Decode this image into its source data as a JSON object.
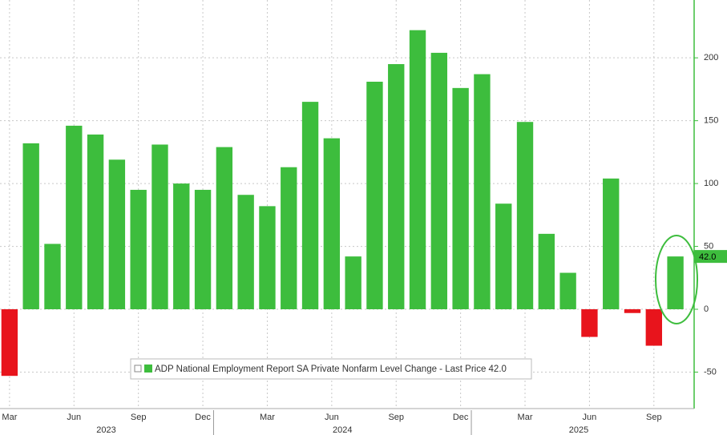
{
  "chart_data": {
    "type": "bar",
    "categories": [
      "Mar",
      null,
      null,
      "Jun",
      null,
      null,
      "Sep",
      null,
      null,
      "Dec",
      null,
      null,
      "Mar",
      null,
      null,
      "Jun",
      null,
      null,
      "Sep",
      null,
      null,
      "Dec",
      null,
      null,
      "Mar",
      null,
      null,
      "Jun",
      null,
      null,
      "Sep",
      null
    ],
    "years": [
      "2023",
      "2024",
      "2025"
    ],
    "series": [
      {
        "name": "ADP National Employment Report SA Private Nonfarm Level Change - Last Price 42.0",
        "color": "#3dbd3d",
        "negative_color": "#e8141c",
        "values": [
          -53,
          132,
          52,
          146,
          139,
          119,
          95,
          131,
          100,
          95,
          129,
          91,
          82,
          113,
          165,
          136,
          42,
          181,
          195,
          222,
          204,
          176,
          187,
          84,
          149,
          60,
          29,
          -22,
          104,
          -3,
          -29,
          42
        ],
        "last_value_label": "42.0"
      }
    ],
    "ylim": [
      -79,
      246
    ],
    "yticks": [
      -50,
      0,
      50,
      100,
      150,
      200
    ],
    "grid": true
  }
}
